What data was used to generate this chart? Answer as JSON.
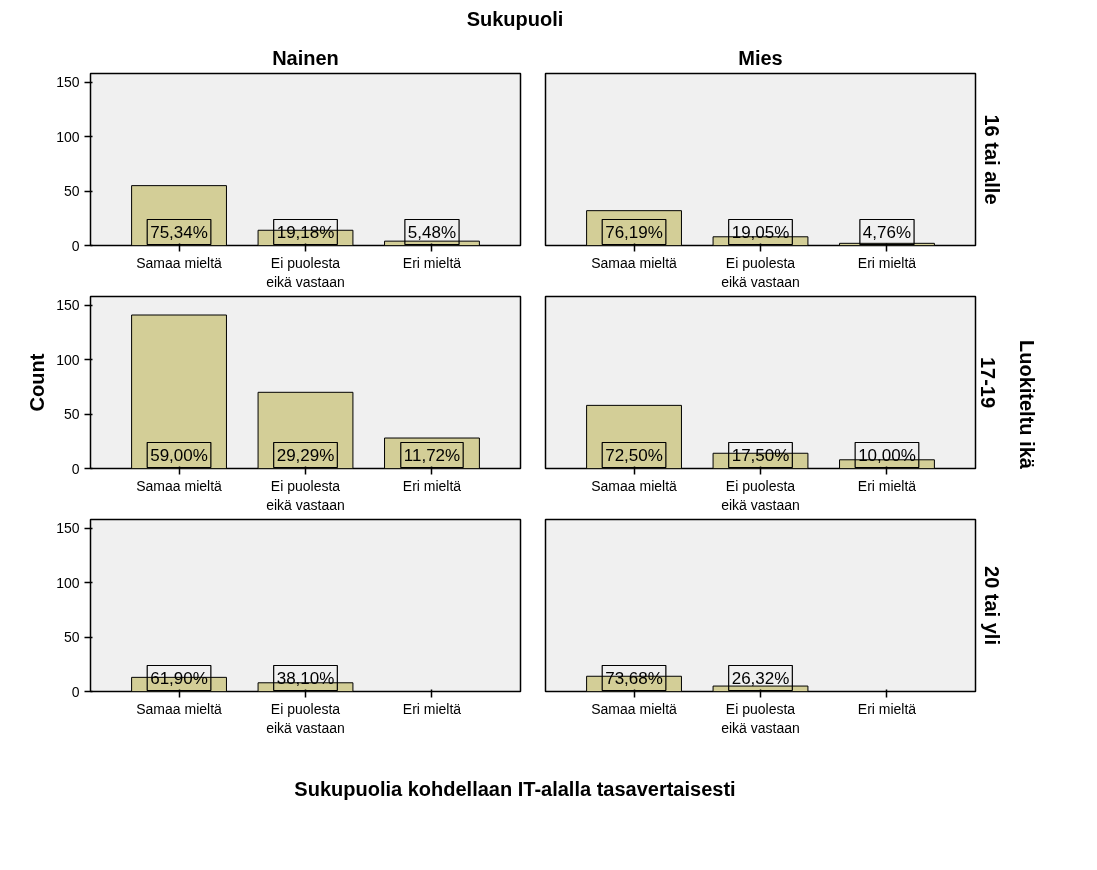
{
  "chart_data": [
    {
      "type": "bar",
      "title": "Nainen",
      "annotations": [
        "75,34%",
        "19,18%",
        "5,48%",
        "Sukupuoli"
      ],
      "categories": [
        "Samaa mieltä",
        "Ei puolesta\neikä vastaan",
        "Eri mieltä"
      ],
      "values": [
        55,
        14,
        4
      ],
      "color": "#d3ce97",
      "ylim": [
        0,
        158
      ],
      "yticks": [
        0,
        50,
        100,
        150
      ],
      "grid": false
    },
    {
      "type": "bar",
      "title": "Mies",
      "y2label": "16 tai alle",
      "annotations": [
        "76,19%",
        "19,05%",
        "4,76%"
      ],
      "categories": [
        "Samaa mieltä",
        "Ei puolesta\neikä vastaan",
        "Eri mieltä"
      ],
      "values": [
        32,
        8,
        2
      ],
      "color": "#d3ce97",
      "ylim": [
        0,
        158
      ],
      "yticks": [
        0,
        50,
        100,
        150
      ],
      "grid": false,
      "tick_labels": "x"
    },
    {
      "type": "bar",
      "ylabel": "Count",
      "annotations": [
        "59,00%",
        "29,29%",
        "11,72%"
      ],
      "categories": [
        "Samaa mieltä",
        "Ei puolesta\neikä vastaan",
        "Eri mieltä"
      ],
      "values": [
        141,
        70,
        28
      ],
      "color": "#d3ce97",
      "ylim": [
        0,
        158
      ],
      "yticks": [
        0,
        50,
        100,
        150
      ],
      "grid": false
    },
    {
      "type": "bar",
      "y2label": "17-19",
      "annotations": [
        "72,50%",
        "17,50%",
        "10,00%",
        "Luokiteltu ikä"
      ],
      "categories": [
        "Samaa mieltä",
        "Ei puolesta\neikä vastaan",
        "Eri mieltä"
      ],
      "values": [
        58,
        14,
        8
      ],
      "color": "#d3ce97",
      "ylim": [
        0,
        158
      ],
      "yticks": [
        0,
        50,
        100,
        150
      ],
      "grid": false,
      "tick_labels": "x"
    },
    {
      "type": "bar",
      "annotations": [
        "61,90%",
        "38,10%",
        "Sukupuolia kohdellaan IT-alalla tasavertaisesti"
      ],
      "categories": [
        "Samaa mieltä",
        "Ei puolesta\neikä vastaan",
        "Eri mieltä"
      ],
      "values": [
        13,
        8,
        0
      ],
      "color": "#d3ce97",
      "ylim": [
        0,
        158
      ],
      "yticks": [
        0,
        50,
        100,
        150
      ],
      "grid": false
    },
    {
      "type": "bar",
      "y2label": "20 tai yli",
      "annotations": [
        "73,68%",
        "26,32%"
      ],
      "categories": [
        "Samaa mieltä",
        "Ei puolesta\neikä vastaan",
        "Eri mieltä"
      ],
      "values": [
        14,
        5,
        0
      ],
      "color": "#d3ce97",
      "ylim": [
        0,
        158
      ],
      "yticks": [
        0,
        50,
        100,
        150
      ],
      "grid": false,
      "tick_labels": "x"
    }
  ]
}
